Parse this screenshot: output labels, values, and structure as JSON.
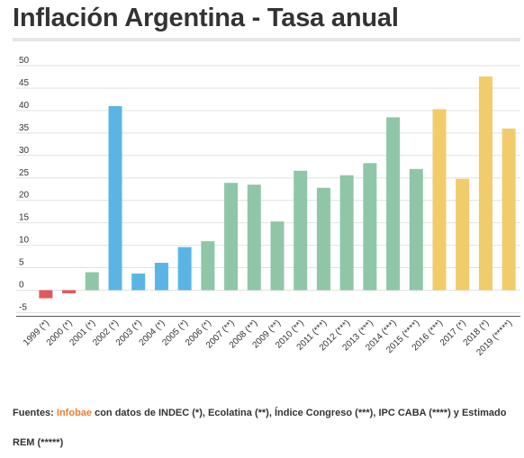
{
  "header": {
    "title": "Inflación Argentina - Tasa anual"
  },
  "source": {
    "prefix": "Fuentes: ",
    "brand": "Infobae",
    "suffix": " con datos de INDEC (*), Ecolatina (**), Índice Congreso (***), IPC CABA (****) y Estimado REM (*****)"
  },
  "colors": {
    "red": "#e0595f",
    "green": "#8fc6a8",
    "blue": "#5ab5e6",
    "yellow": "#f2cb6b"
  },
  "chart_data": {
    "type": "bar",
    "categories": [
      "1999 (*)",
      "2000 (*)",
      "2001 (*)",
      "2002 (*)",
      "2003 (*)",
      "2004 (*)",
      "2005 (*)",
      "2006 (*)",
      "2007 (**)",
      "2008 (**)",
      "2009 (**)",
      "2010 (**)",
      "2011 (***)",
      "2012 (***)",
      "2013 (***)",
      "2014 (***)",
      "2015 (****)",
      "2016 (***)",
      "2017 (*)",
      "2018 (*)",
      "2019 (*****)"
    ],
    "values": [
      -1.8,
      -0.7,
      4.0,
      41.0,
      3.7,
      6.1,
      9.6,
      10.9,
      23.9,
      23.5,
      15.3,
      26.6,
      22.8,
      25.6,
      28.3,
      38.5,
      27.0,
      40.3,
      24.8,
      47.6,
      36.0
    ],
    "bar_colors": [
      "red",
      "red",
      "green",
      "blue",
      "blue",
      "blue",
      "blue",
      "green",
      "green",
      "green",
      "green",
      "green",
      "green",
      "green",
      "green",
      "green",
      "green",
      "yellow",
      "yellow",
      "yellow",
      "yellow"
    ],
    "yticks": [
      50,
      45,
      40,
      35,
      30,
      25,
      20,
      15,
      10,
      5,
      0,
      -5
    ],
    "ylim": [
      -5,
      50
    ],
    "grid": true
  }
}
